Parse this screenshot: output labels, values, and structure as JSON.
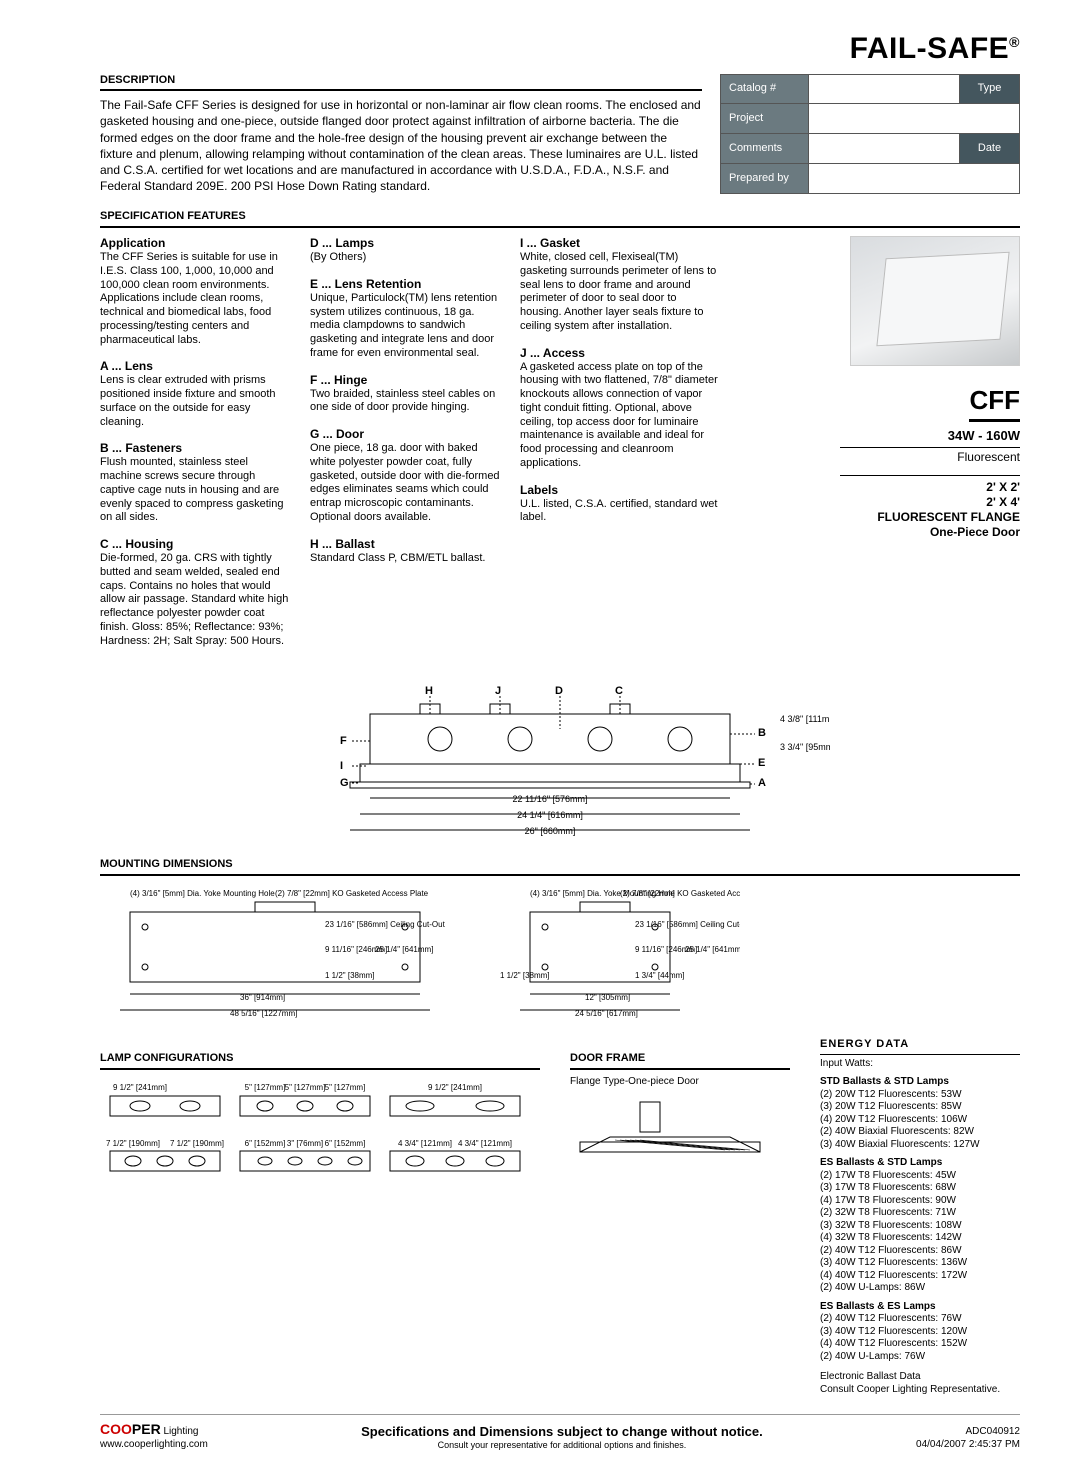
{
  "brand": "FAIL-SAFE",
  "brand_reg": "®",
  "meta": {
    "catalog_label": "Catalog #",
    "type_label": "Type",
    "project_label": "Project",
    "comments_label": "Comments",
    "date_label": "Date",
    "prepared_label": "Prepared by"
  },
  "description": {
    "title": "DESCRIPTION",
    "text": "The Fail-Safe CFF Series is designed for use in horizontal or non-laminar air flow clean rooms. The enclosed and gasketed housing and one-piece, outside flanged door protect against infiltration of airborne bacteria. The die formed edges on the door frame and the hole-free design of the housing prevent air exchange between the fixture and plenum, allowing relamping without contamination of the clean areas. These luminaires are U.L. listed and C.S.A. certified for wet locations and are manufactured in accordance with U.S.D.A., F.D.A., N.S.F. and Federal Standard 209E. 200 PSI Hose Down Rating standard."
  },
  "spec_title": "SPECIFICATION FEATURES",
  "features": {
    "application": {
      "head": "Application",
      "body": "The CFF Series is suitable for use in I.E.S. Class 100, 1,000, 10,000 and 100,000 clean room environments. Applications include clean rooms, technical and biomedical labs, food processing/testing centers and pharmaceutical labs."
    },
    "a": {
      "head": "A ... Lens",
      "body": "Lens is clear extruded with prisms positioned inside fixture and smooth surface on the outside for easy cleaning."
    },
    "b": {
      "head": "B ... Fasteners",
      "body": "Flush mounted, stainless steel machine screws secure through captive cage nuts in housing and are evenly spaced to compress gasketing on all sides."
    },
    "c": {
      "head": "C ... Housing",
      "body": "Die-formed, 20 ga. CRS with tightly butted and seam welded, sealed end caps. Contains no holes that would allow air passage. Standard white high reflectance polyester powder coat finish. Gloss: 85%; Reflectance: 93%; Hardness: 2H; Salt Spray: 500 Hours."
    },
    "d": {
      "head": "D ... Lamps",
      "body": "(By Others)"
    },
    "e": {
      "head": "E ... Lens Retention",
      "body": "Unique, Particulock(TM) lens retention system utilizes continuous, 18 ga. media clampdowns to sandwich gasketing and integrate lens and door frame for even environmental seal."
    },
    "f": {
      "head": "F ... Hinge",
      "body": "Two braided, stainless steel cables on one side of door provide hinging."
    },
    "g": {
      "head": "G ... Door",
      "body": "One piece, 18 ga. door with baked white polyester powder coat, fully gasketed, outside door with die-formed edges eliminates seams which could entrap microscopic contaminants. Optional doors available."
    },
    "h": {
      "head": "H ... Ballast",
      "body": "Standard Class P, CBM/ETL ballast."
    },
    "i": {
      "head": "I ... Gasket",
      "body": "White, closed cell, Flexiseal(TM) gasketing surrounds perimeter of lens to seal lens to door frame and around perimeter of door to seal door to housing. Another layer seals fixture to ceiling system after installation."
    },
    "j": {
      "head": "J ... Access",
      "body": "A gasketed access plate on top of the housing with two flattened, 7/8\" diameter knockouts allows connection of vapor tight conduit fitting. Optional, above ceiling, top access door for luminaire maintenance is available and ideal for food processing and cleanroom applications."
    },
    "labels": {
      "head": "Labels",
      "body": "U.L. listed, C.S.A. certified, standard wet label."
    }
  },
  "product": {
    "model": "CFF",
    "watt": "34W - 160W",
    "type": "Fluorescent",
    "size1": "2' X 2'",
    "size2": "2' X 4'",
    "mount": "FLUORESCENT FLANGE",
    "door": "One-Piece Door"
  },
  "diagram": {
    "labels_top": [
      "H",
      "J",
      "D",
      "C"
    ],
    "labels_left": [
      "F",
      "I",
      "G"
    ],
    "dim_inner": "22 11/16\"  [576mm]",
    "dim_mid": "24 1/4\"  [616mm]",
    "dim_outer": "26\"  [660mm]",
    "dim_h1": "4 3/8\" [111mm]",
    "dim_h2": "3 3/4\" [95mm]",
    "refs_right": [
      "B",
      "E",
      "A"
    ]
  },
  "mounting": {
    "title": "MOUNTING DIMENSIONS",
    "note1": "(4) 3/16\" [5mm] Dia. Yoke Mounting Hole",
    "note2": "(2) 7/8\" [22mm] KO Gasketed Access Plate",
    "c1": "23 1/16\" [586mm] Ceiling Cut-Out",
    "c2": "9 11/16\" [246mm]",
    "c3": "25 1/4\" [641mm]",
    "c4": "1 1/2\" [38mm]",
    "c5": "36\" [914mm]",
    "c6": "48 5/16\" [1227mm]",
    "d1": "1 1/2\" [38mm]",
    "d2": "1 3/4\" [44mm]",
    "d3": "12\" [305mm]",
    "d4": "24 5/16\" [617mm]"
  },
  "lamp": {
    "title": "LAMP CONFIGURATIONS",
    "l1": "9 1/2\" [241mm]",
    "l2": "5\" [127mm]",
    "l3": "7 1/2\" [190mm]",
    "l4": "6\" [152mm]",
    "l5": "3\" [76mm]",
    "l6": "4 3/4\" [121mm]"
  },
  "doorframe": {
    "title": "DOOR FRAME",
    "caption": "Flange Type-One-piece Door"
  },
  "energy": {
    "title": "ENERGY DATA",
    "input": "Input Watts:",
    "groups": [
      {
        "head": "STD Ballasts & STD Lamps",
        "items": [
          "(2) 20W T12 Fluorescents: 53W",
          "(3) 20W T12 Fluorescents: 85W",
          "(4) 20W T12 Fluorescents: 106W",
          "(2) 40W Biaxial Fluorescents: 82W",
          "(3) 40W Biaxial Fluorescents: 127W"
        ]
      },
      {
        "head": "ES Ballasts & STD Lamps",
        "items": [
          "(2) 17W T8 Fluorescents: 45W",
          "(3) 17W T8 Fluorescents: 68W",
          "(4) 17W T8 Fluorescents: 90W",
          "(2) 32W T8 Fluorescents: 71W",
          "(3) 32W T8 Fluorescents: 108W",
          "(4) 32W T8 Fluorescents: 142W",
          "(2) 40W T12 Fluorescents: 86W",
          "(3) 40W T12 Fluorescents: 136W",
          "(4) 40W T12 Fluorescents: 172W",
          "(2) 40W U-Lamps: 86W"
        ]
      },
      {
        "head": "ES Ballasts & ES Lamps",
        "items": [
          "(2) 40W T12 Fluorescents: 76W",
          "(3) 40W T12 Fluorescents: 120W",
          "(4) 40W T12 Fluorescents: 152W",
          "(2) 40W U-Lamps: 76W"
        ]
      }
    ],
    "footnote1": "Electronic Ballast Data",
    "footnote2": "Consult Cooper Lighting Representative."
  },
  "footer": {
    "cooper": "COOPER",
    "lighting": " Lighting",
    "url": "www.cooperlighting.com",
    "mid1": "Specifications and Dimensions subject to change without notice.",
    "mid2": "Consult your representative for additional options and finishes.",
    "code": "ADC040912",
    "date": "04/04/2007 2:45:37 PM"
  },
  "colors": {
    "header_bg": "#6b7a80",
    "header_bg_dark": "#44565e"
  }
}
